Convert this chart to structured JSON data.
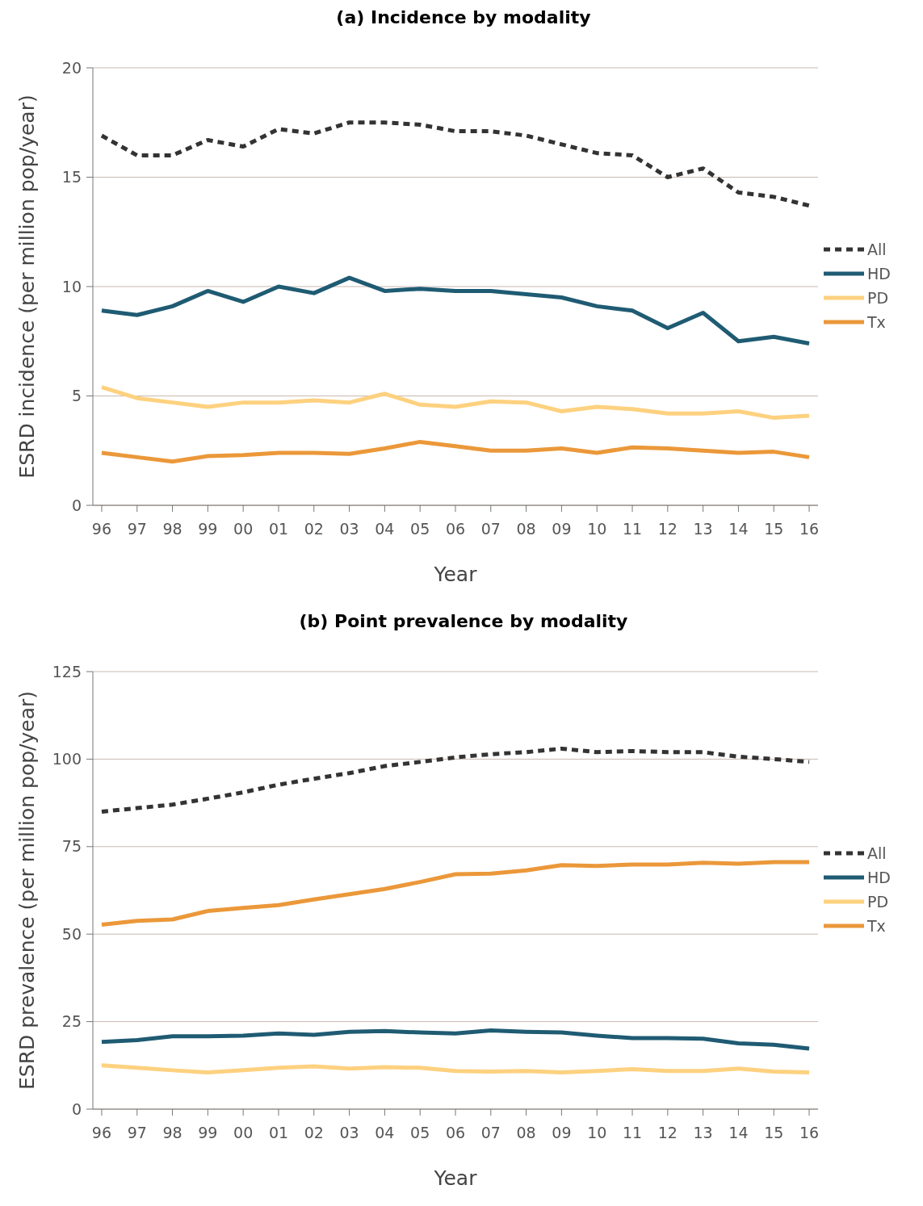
{
  "chart_data": [
    {
      "type": "line",
      "title": "(a) Incidence by modality",
      "xlabel": "Year",
      "ylabel": "ESRD incidence (per million pop/year)",
      "categories": [
        "96",
        "97",
        "98",
        "99",
        "00",
        "01",
        "02",
        "03",
        "04",
        "05",
        "06",
        "07",
        "08",
        "09",
        "10",
        "11",
        "12",
        "13",
        "14",
        "15",
        "16"
      ],
      "ylim": [
        0,
        20
      ],
      "yticks": [
        0,
        5,
        10,
        15,
        20
      ],
      "grid": "y",
      "legend": "right",
      "marker": "none",
      "series": [
        {
          "name": "All",
          "color": "#333333",
          "line_style": "dashed",
          "values": [
            16.9,
            16.0,
            16.0,
            16.7,
            16.4,
            17.2,
            17.0,
            17.5,
            17.5,
            17.4,
            17.1,
            17.1,
            16.9,
            16.5,
            16.1,
            16.0,
            15.0,
            15.4,
            14.3,
            14.1,
            13.7
          ]
        },
        {
          "name": "HD",
          "color": "#1f5b73",
          "line_style": "solid",
          "values": [
            8.9,
            8.7,
            9.1,
            9.8,
            9.3,
            10.0,
            9.7,
            10.4,
            9.8,
            9.9,
            9.8,
            9.8,
            9.65,
            9.5,
            9.1,
            8.9,
            8.1,
            8.8,
            7.5,
            7.7,
            7.4
          ]
        },
        {
          "name": "PD",
          "color": "#fdd17f",
          "line_style": "solid",
          "values": [
            5.4,
            4.9,
            4.7,
            4.5,
            4.7,
            4.7,
            4.8,
            4.7,
            5.1,
            4.6,
            4.5,
            4.75,
            4.7,
            4.3,
            4.5,
            4.4,
            4.2,
            4.2,
            4.3,
            4.0,
            4.1
          ]
        },
        {
          "name": "Tx",
          "color": "#eb983a",
          "line_style": "solid",
          "values": [
            2.4,
            2.2,
            2.0,
            2.25,
            2.3,
            2.4,
            2.4,
            2.35,
            2.6,
            2.9,
            2.7,
            2.5,
            2.5,
            2.6,
            2.4,
            2.65,
            2.6,
            2.5,
            2.4,
            2.45,
            2.2
          ]
        }
      ]
    },
    {
      "type": "line",
      "title": "(b) Point prevalence by modality",
      "xlabel": "Year",
      "ylabel": "ESRD prevalence (per million pop/year)",
      "categories": [
        "96",
        "97",
        "98",
        "99",
        "00",
        "01",
        "02",
        "03",
        "04",
        "05",
        "06",
        "07",
        "08",
        "09",
        "10",
        "11",
        "12",
        "13",
        "14",
        "15",
        "16"
      ],
      "ylim": [
        0,
        125
      ],
      "yticks": [
        0,
        25,
        50,
        75,
        100,
        125
      ],
      "grid": "y",
      "legend": "right",
      "marker": "none",
      "series": [
        {
          "name": "All",
          "color": "#333333",
          "line_style": "dashed",
          "values": [
            85,
            86,
            87,
            88.7,
            90.5,
            92.7,
            94.4,
            96,
            98,
            99.2,
            100.5,
            101.4,
            102,
            103,
            102,
            102.3,
            102,
            102,
            100.7,
            100,
            99.2
          ]
        },
        {
          "name": "HD",
          "color": "#1f5b73",
          "line_style": "solid",
          "values": [
            19.2,
            19.7,
            20.8,
            20.8,
            21,
            21.6,
            21.2,
            22.1,
            22.3,
            21.9,
            21.6,
            22.5,
            22.1,
            21.9,
            21,
            20.3,
            20.3,
            20.1,
            18.8,
            18.4,
            17.3
          ]
        },
        {
          "name": "PD",
          "color": "#fdd17f",
          "line_style": "solid",
          "values": [
            12.5,
            11.8,
            11.1,
            10.5,
            11.1,
            11.8,
            12.2,
            11.6,
            12,
            11.8,
            10.9,
            10.7,
            10.9,
            10.5,
            10.9,
            11.4,
            10.9,
            10.9,
            11.6,
            10.7,
            10.5
          ]
        },
        {
          "name": "Tx",
          "color": "#eb983a",
          "line_style": "solid",
          "values": [
            52.7,
            53.8,
            54.2,
            56.6,
            57.5,
            58.3,
            59.9,
            61.4,
            62.9,
            64.9,
            67.1,
            67.3,
            68.2,
            69.7,
            69.5,
            69.9,
            69.9,
            70.4,
            70.1,
            70.6,
            70.6
          ]
        }
      ]
    }
  ]
}
